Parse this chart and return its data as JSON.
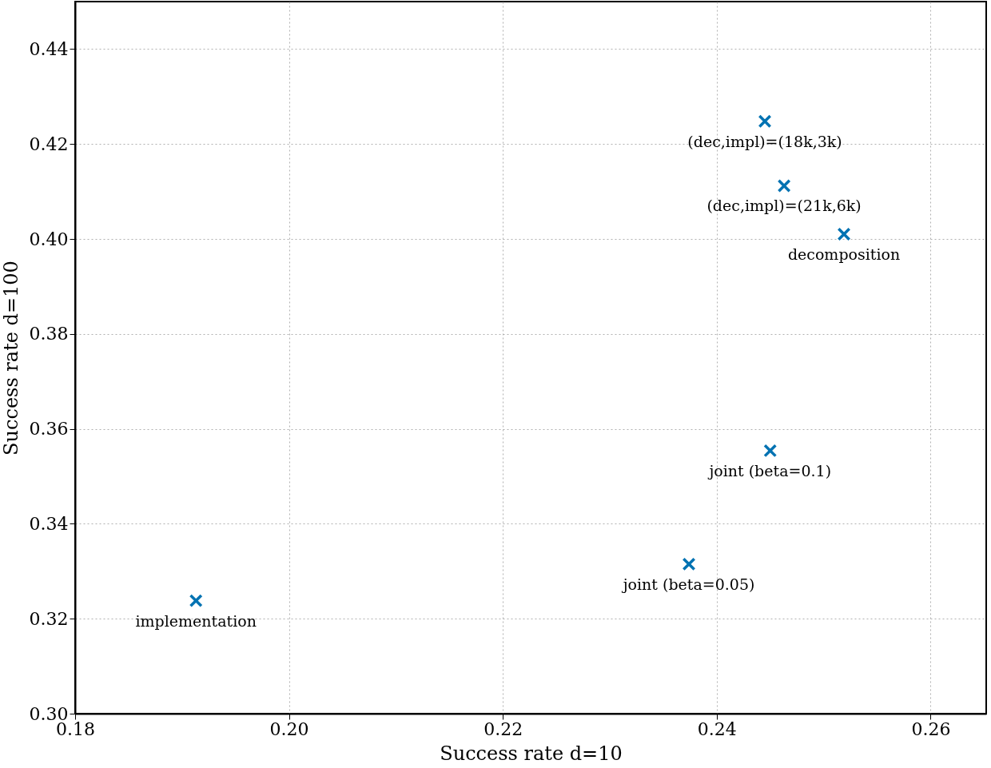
{
  "chart_data": {
    "type": "scatter",
    "xlabel": "Success rate d=10",
    "ylabel": "Success rate d=100",
    "x": [
      0.1913,
      0.2374,
      0.245,
      0.2519,
      0.2463,
      0.2445
    ],
    "values": [
      0.3238,
      0.3315,
      0.3554,
      0.401,
      0.4112,
      0.4248
    ],
    "color": "#0072b2",
    "marker": "cross",
    "xlim": [
      0.18,
      0.2652
    ],
    "xticks": [
      0.18,
      {
        "value": 0.2,
        "label": "0.20"
      },
      0.22,
      0.24,
      0.26
    ],
    "ylim": [
      0.3,
      0.45
    ],
    "yticks": [
      {
        "value": 0.3,
        "label": "0.30"
      },
      0.32,
      0.34,
      0.36,
      0.38,
      {
        "value": 0.4,
        "label": "0.40"
      },
      0.42,
      0.44
    ],
    "grid": true,
    "annotations": [
      {
        "text": "implementation",
        "x": 0.1913,
        "y": 0.3238
      },
      {
        "text": "joint (beta=0.05)",
        "x": 0.2374,
        "y": 0.3315
      },
      {
        "text": "joint (beta=0.1)",
        "x": 0.245,
        "y": 0.3554
      },
      {
        "text": "decomposition",
        "x": 0.2519,
        "y": 0.401
      },
      {
        "text": "(dec,impl)=(21k,6k)",
        "x": 0.2463,
        "y": 0.4112
      },
      {
        "text": "(dec,impl)=(18k,3k)",
        "x": 0.2445,
        "y": 0.4248
      }
    ]
  }
}
